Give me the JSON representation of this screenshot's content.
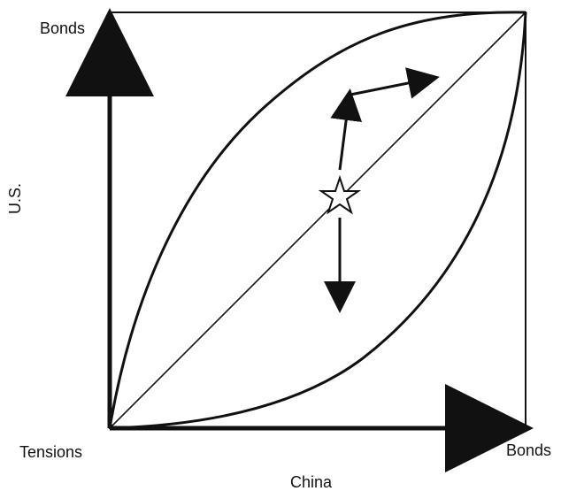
{
  "labels": {
    "y_top": "Bonds",
    "x_right": "Bonds",
    "origin": "Tensions",
    "x_axis": "China",
    "y_axis": "U.S."
  },
  "colors": {
    "ink": "#111111",
    "background": "#ffffff"
  }
}
